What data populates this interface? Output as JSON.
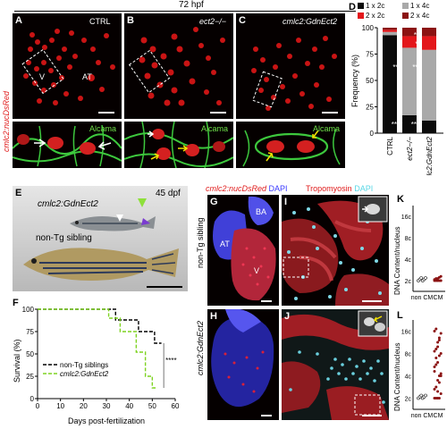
{
  "figure": {
    "top_title": "72 hpf",
    "left_vertical": "cmlc2:nucDsRed"
  },
  "panels": {
    "A": {
      "letter": "A",
      "label": "CTRL",
      "ventricle": "V",
      "atrium": "AT",
      "stain": "Alcama"
    },
    "B": {
      "letter": "B",
      "label": "ect2−/−",
      "stain": "Alcama"
    },
    "C": {
      "letter": "C",
      "label": "cmlc2:GdnEct2",
      "stain": "Alcama"
    },
    "D": {
      "letter": "D",
      "legend": [
        "1 x 2c",
        "1 x 4c",
        "2 x 2c",
        "2 x 4c"
      ],
      "colors": {
        "1x2c": "#0b0b0b",
        "1x4c": "#a9a9a9",
        "2x2c": "#e3171b",
        "2x4c": "#8b1212"
      },
      "y_label": "Frequency (%)",
      "x_categories": [
        "CTRL",
        "ect2−/−",
        "cmlc2:GdnEct2"
      ]
    },
    "E": {
      "letter": "E",
      "age": "45 dpf",
      "tg_label": "cmlc2:GdnEct2",
      "sib_label": "non-Tg sibling"
    },
    "F": {
      "letter": "F",
      "y_label": "Survival (%)",
      "x_label": "Days post-fertilization",
      "significance": "****",
      "legend": [
        "non-Tg siblings",
        "cmlc2:GdnEct2"
      ]
    },
    "G": {
      "letter": "G",
      "side": "non-Tg sibling",
      "atrium": "AT",
      "ventricle": "V",
      "bulbus": "BA"
    },
    "H": {
      "letter": "H",
      "side": "cmlc2:GdnEct2"
    },
    "I": {
      "letter": "I"
    },
    "J": {
      "letter": "J"
    },
    "K": {
      "letter": "K",
      "y_label": "DNA Content/nucleus",
      "x_categories": [
        "non CM",
        "CM"
      ]
    },
    "L": {
      "letter": "L",
      "y_label": "DNA Content/nucleus",
      "x_categories": [
        "non CM",
        "CM"
      ]
    },
    "GH_header": {
      "a": "cmlc2:nucDsRed",
      "b": "DAPI"
    },
    "IJ_header": {
      "a": "Tropomyosin",
      "b": "DAPI"
    }
  },
  "chart_data": [
    {
      "type": "bar",
      "title": "",
      "ylabel": "Frequency (%)",
      "categories": [
        "CTRL",
        "ect2−/−",
        "cmlc2:GdnEct2"
      ],
      "ylim": [
        0,
        100
      ],
      "series": [
        {
          "name": "1 x 2c",
          "values": [
            93,
            17,
            12
          ]
        },
        {
          "name": "1 x 4c",
          "values": [
            3,
            64,
            67
          ]
        },
        {
          "name": "2 x 2c",
          "values": [
            2,
            11,
            13
          ]
        },
        {
          "name": "2 x 4c",
          "values": [
            2,
            8,
            8
          ]
        }
      ],
      "annotations": [
        "***",
        "****",
        "***",
        "****",
        "**",
        "*"
      ]
    },
    {
      "type": "line",
      "ylabel": "Survival (%)",
      "xlabel": "Days post-fertilization",
      "xlim": [
        0,
        60
      ],
      "ylim": [
        0,
        100
      ],
      "x_ticks": [
        0,
        10,
        20,
        30,
        40,
        50,
        60
      ],
      "y_ticks": [
        0,
        25,
        50,
        75,
        100
      ],
      "series": [
        {
          "name": "non-Tg siblings",
          "x": [
            0,
            34,
            34,
            44,
            44,
            51,
            51,
            54
          ],
          "y": [
            100,
            100,
            88,
            88,
            75,
            75,
            62,
            62
          ]
        },
        {
          "name": "cmlc2:GdnEct2",
          "x": [
            0,
            31,
            31,
            36,
            36,
            43,
            43,
            47,
            47,
            50,
            50,
            52
          ],
          "y": [
            100,
            100,
            90,
            90,
            75,
            75,
            52,
            52,
            25,
            25,
            12,
            12
          ]
        }
      ]
    },
    {
      "type": "scatter",
      "ylabel": "DNA Content/nucleus",
      "categories": [
        "non CM",
        "CM"
      ],
      "y_ticks": [
        "2c",
        "4c",
        "8c",
        "16c"
      ]
    },
    {
      "type": "scatter",
      "ylabel": "DNA Content/nucleus",
      "categories": [
        "non CM",
        "CM"
      ],
      "y_ticks": [
        "2c",
        "4c",
        "8c",
        "16c"
      ]
    }
  ]
}
